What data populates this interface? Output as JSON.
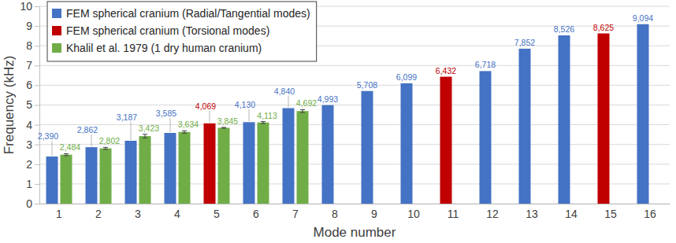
{
  "chart_data": {
    "type": "bar",
    "x_label": "Mode number",
    "y_label": "Frequency (kHz)",
    "categories": [
      "1",
      "2",
      "3",
      "4",
      "5",
      "6",
      "7",
      "8",
      "9",
      "10",
      "11",
      "12",
      "13",
      "14",
      "15",
      "16"
    ],
    "series": [
      {
        "name": "FEM spherical cranium (Radial/Tangential modes)",
        "color": "#4472c4",
        "values": [
          2.39,
          2.862,
          3.187,
          3.585,
          null,
          4.13,
          4.84,
          4.993,
          5.708,
          6.099,
          null,
          6.718,
          7.852,
          8.526,
          null,
          9.094
        ],
        "value_labels": [
          "2,390",
          "2,862",
          "3,187",
          "3,585",
          null,
          "4,130",
          "4,840",
          "4,993",
          "5,708",
          "6,099",
          null,
          "6,718",
          "7,852",
          "8,526",
          null,
          "9,094"
        ]
      },
      {
        "name": "FEM spherical cranium (Torsional modes)",
        "color": "#c00000",
        "values": [
          null,
          null,
          null,
          null,
          4.069,
          null,
          null,
          null,
          null,
          null,
          6.432,
          null,
          null,
          null,
          8.625,
          null
        ],
        "value_labels": [
          null,
          null,
          null,
          null,
          "4,069",
          null,
          null,
          null,
          null,
          null,
          "6,432",
          null,
          null,
          null,
          "8,625",
          null
        ]
      },
      {
        "name": "Khalil et al. 1979 (1 dry human cranium)",
        "color": "#70ad47",
        "values": [
          2.484,
          2.802,
          3.423,
          3.634,
          3.845,
          4.113,
          4.692,
          null,
          null,
          null,
          null,
          null,
          null,
          null,
          null,
          null
        ],
        "errors": [
          0.05,
          0.05,
          0.09,
          0.06,
          0.02,
          0.05,
          0.07,
          null,
          null,
          null,
          null,
          null,
          null,
          null,
          null,
          null
        ],
        "value_labels": [
          "2,484",
          "2,802",
          "3,423",
          "3,634",
          "3,845",
          "4,113",
          "4,692",
          null,
          null,
          null,
          null,
          null,
          null,
          null,
          null,
          null
        ]
      }
    ],
    "ylim": [
      0,
      10
    ],
    "yticks": [
      0,
      1,
      2,
      3,
      4,
      5,
      6,
      7,
      8,
      9,
      10
    ],
    "grid": true,
    "legend": "upper left",
    "data_labels": true
  }
}
